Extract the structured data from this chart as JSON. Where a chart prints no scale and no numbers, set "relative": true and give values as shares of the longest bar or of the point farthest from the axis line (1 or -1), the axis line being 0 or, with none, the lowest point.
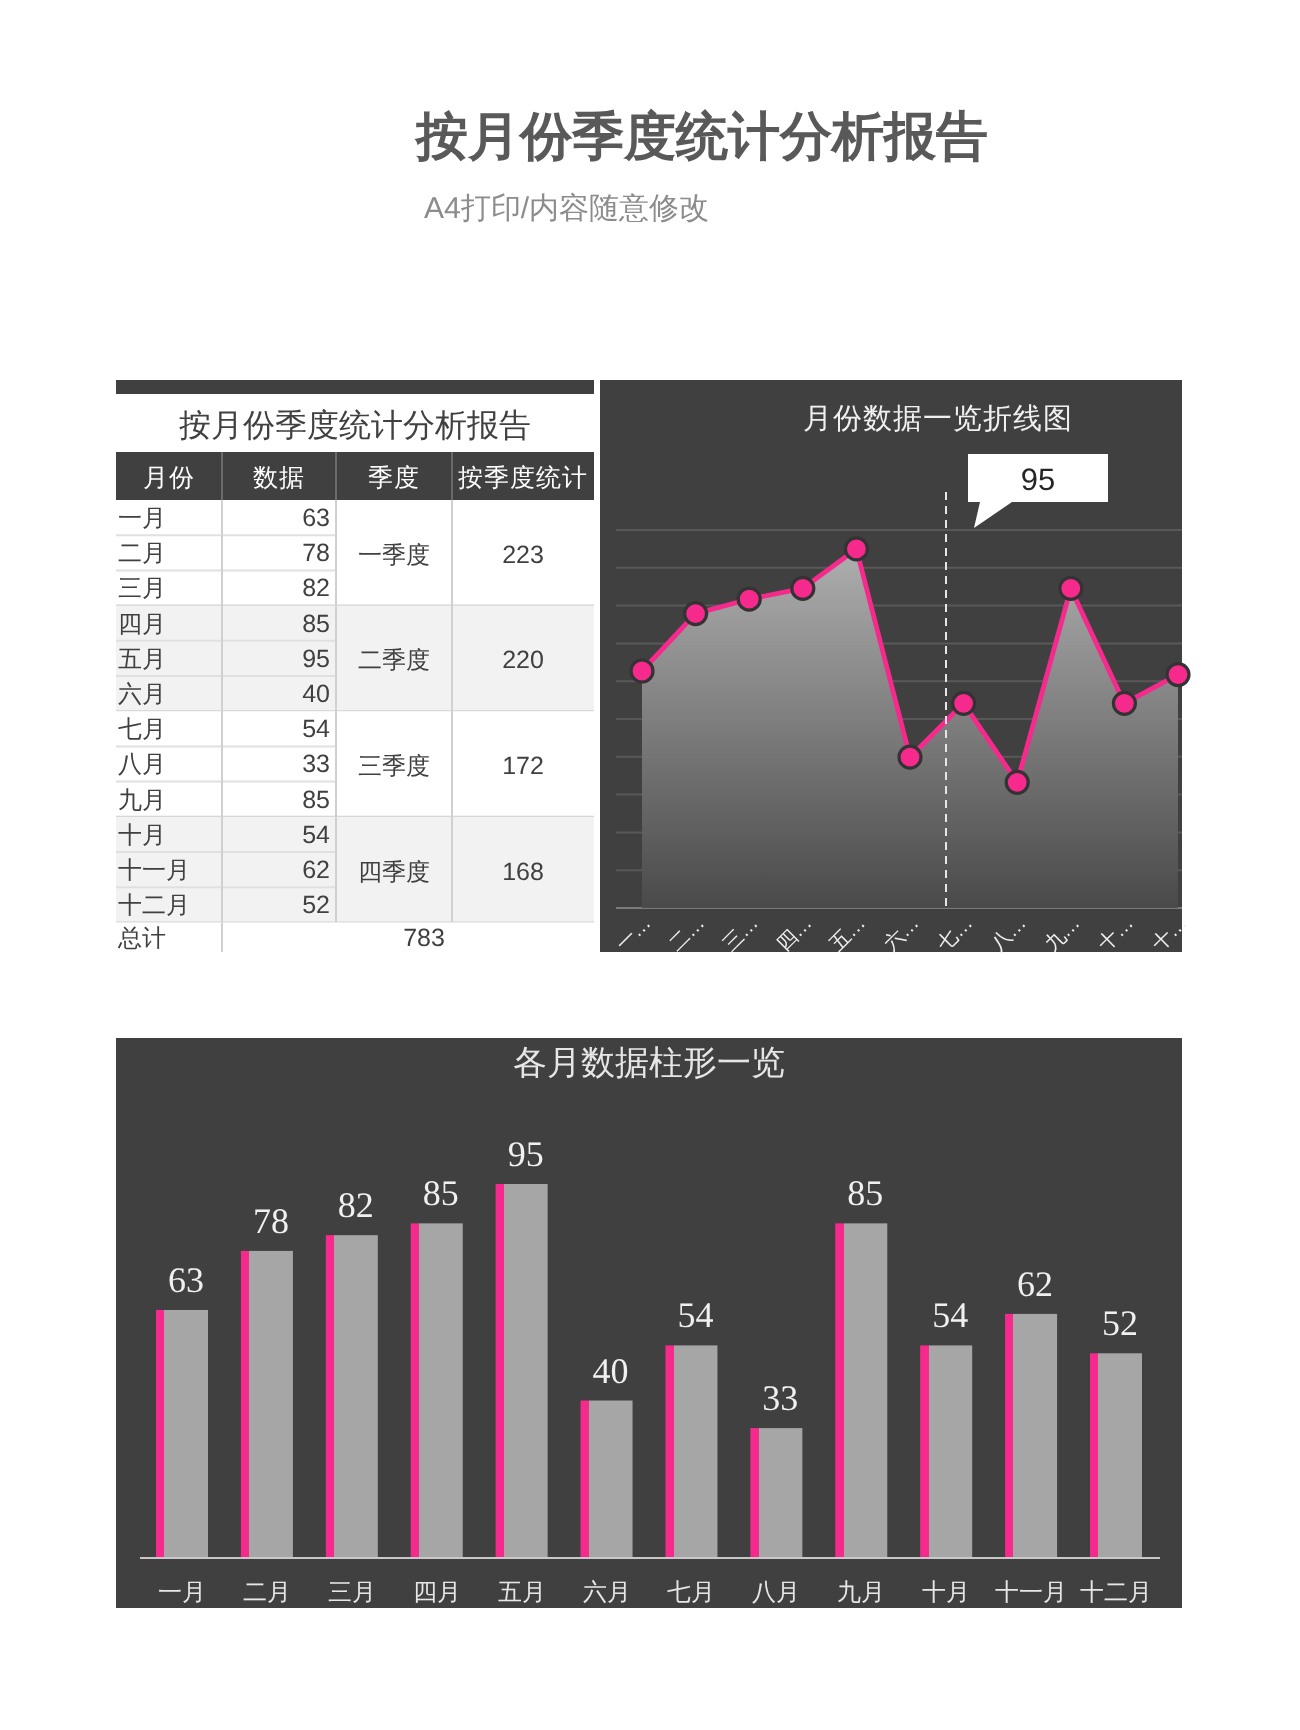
{
  "chart_data": [
    {
      "type": "other",
      "title": "按月份季度统计分析报告",
      "subtitle": "A4打印/内容随意修改"
    },
    {
      "type": "other",
      "title": "按月份季度统计分析报告",
      "xlabel": "月份",
      "categories": [
        "一月",
        "二月",
        "三月",
        "四月",
        "五月",
        "六月",
        "七月",
        "八月",
        "九月",
        "十月",
        "十一月",
        "十二月"
      ],
      "series": [
        {
          "name": "数据",
          "values": [
            63,
            78,
            82,
            85,
            95,
            40,
            54,
            33,
            85,
            54,
            62,
            52
          ]
        }
      ],
      "data_labels": true,
      "y_categories": [
        "一季度",
        "二季度",
        "三季度",
        "四季度"
      ],
      "totals": [
        "223",
        "220",
        "172",
        "168"
      ],
      "annotations": [
        "季度",
        "按季度统计",
        "总计",
        "783"
      ]
    },
    {
      "type": "area",
      "title": "月份数据一览折线图",
      "categories": [
        "一…",
        "二…",
        "三…",
        "四…",
        "五…",
        "六…",
        "七…",
        "八…",
        "九…",
        "十…",
        "十…"
      ],
      "relative": true,
      "series": [
        {
          "color": "#f52a8c",
          "values": [
            0.66,
            0.82,
            0.86,
            0.89,
            1,
            0.42,
            0.57,
            0.35,
            0.89,
            0.57,
            0.65
          ]
        }
      ],
      "marker": "circle",
      "grid": "y",
      "annotations": [
        "95"
      ]
    },
    {
      "type": "bar",
      "title": "各月数据柱形一览",
      "categories": [
        "一月",
        "二月",
        "三月",
        "四月",
        "五月",
        "六月",
        "七月",
        "八月",
        "九月",
        "十月",
        "十一月",
        "十二月"
      ],
      "values": [
        63,
        78,
        82,
        85,
        95,
        40,
        54,
        33,
        85,
        54,
        62,
        52
      ],
      "color": "#a6a6a6",
      "data_labels": true
    }
  ]
}
